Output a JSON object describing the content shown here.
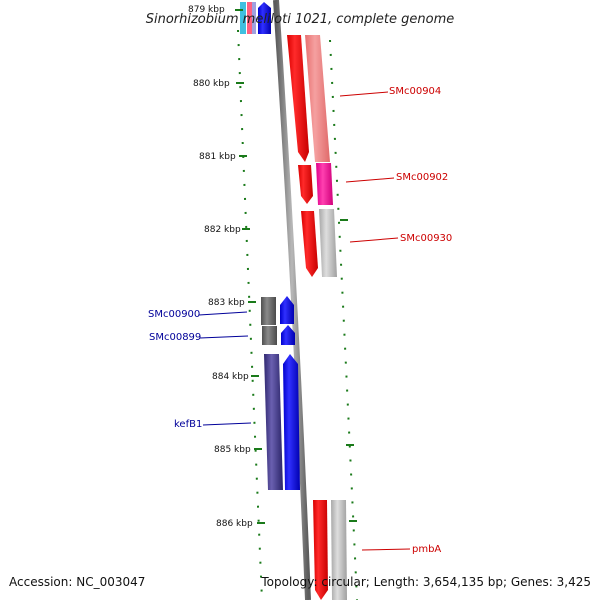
{
  "title": "Sinorhizobium meliloti 1021, complete genome",
  "accession": "Accession: NC_003047",
  "topology": "Topology: circular; Length: 3,654,135 bp; Genes: 3,425",
  "ticks": [
    "879 kbp",
    "880 kbp",
    "881 kbp",
    "882 kbp",
    "883 kbp",
    "884 kbp",
    "885 kbp",
    "886 kbp"
  ],
  "labels": {
    "smc00904": "SMc00904",
    "smc00902": "SMc00902",
    "smc00930": "SMc00930",
    "smc00900": "SMc00900",
    "smc00899": "SMc00899",
    "kefb1": "kefB1",
    "pmba": "pmbA"
  },
  "colors": {
    "forward_label": "#cc0000",
    "reverse_label": "#000099",
    "forward_cds": "#ff0000",
    "reverse_cds": "#0000ff",
    "backbone": "#808080",
    "tick": "#1a7a1a"
  }
}
